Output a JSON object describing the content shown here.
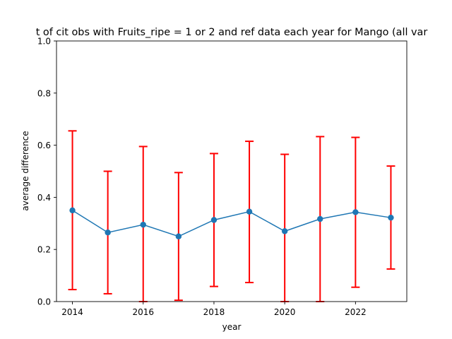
{
  "chart_data": {
    "type": "line",
    "title": "t of cit obs with Fruits_ripe = 1 or 2 and ref data each year for Mango (all var",
    "xlabel": "year",
    "ylabel": "average difference",
    "xlim": [
      2013.55,
      2023.45
    ],
    "ylim": [
      0,
      1.0
    ],
    "x_ticks": [
      2014,
      2016,
      2018,
      2020,
      2022
    ],
    "x_tick_labels": [
      "2014",
      "2016",
      "2018",
      "2020",
      "2022"
    ],
    "y_ticks": [
      0.0,
      0.2,
      0.4,
      0.6,
      0.8,
      1.0
    ],
    "y_tick_labels": [
      "0.0",
      "0.2",
      "0.4",
      "0.6",
      "0.8",
      "1.0"
    ],
    "grid": false,
    "series": [
      {
        "x": [
          2014,
          2015,
          2016,
          2017,
          2018,
          2019,
          2020,
          2021,
          2022,
          2023
        ],
        "values": [
          0.35,
          0.265,
          0.295,
          0.25,
          0.313,
          0.345,
          0.27,
          0.317,
          0.343,
          0.322
        ],
        "err_low": [
          0.046,
          0.03,
          0.0,
          0.005,
          0.058,
          0.073,
          0.0,
          0.0,
          0.055,
          0.125
        ],
        "err_high": [
          0.655,
          0.5,
          0.595,
          0.495,
          0.568,
          0.615,
          0.565,
          0.633,
          0.63,
          0.52
        ],
        "color": "#1f77b4",
        "error_color": "#ff0000"
      }
    ]
  }
}
